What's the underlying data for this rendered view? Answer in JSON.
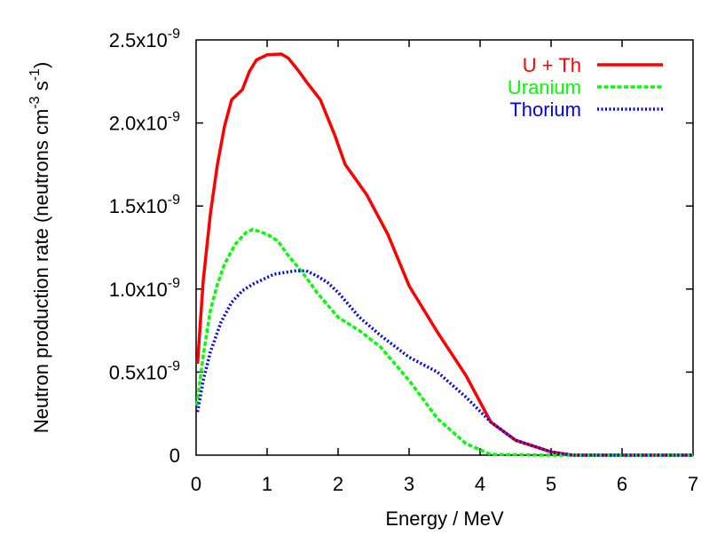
{
  "chart_data": {
    "type": "line",
    "title": "",
    "xlabel": "Energy / MeV",
    "ylabel": "Neutron production rate (neutrons cm^-3 s^-1)",
    "ylabel_parts": {
      "main": "Neutron production rate (neutrons cm",
      "sup1": "-3",
      "mid": " s",
      "sup2": "-1",
      "end": ")"
    },
    "xlim": [
      0,
      7
    ],
    "ylim": [
      0,
      2.5e-09
    ],
    "y_unit_multiplier": 1e-09,
    "x_ticks": [
      0,
      1,
      2,
      3,
      4,
      5,
      6,
      7
    ],
    "x_tick_labels": [
      "0",
      "1",
      "2",
      "3",
      "4",
      "5",
      "6",
      "7"
    ],
    "y_ticks": [
      0,
      0.5,
      1.0,
      1.5,
      2.0,
      2.5
    ],
    "y_tick_labels": [
      {
        "base": "0",
        "exp": ""
      },
      {
        "base": "0.5x10",
        "exp": "-9"
      },
      {
        "base": "1.0x10",
        "exp": "-9"
      },
      {
        "base": "1.5x10",
        "exp": "-9"
      },
      {
        "base": "2.0x10",
        "exp": "-9"
      },
      {
        "base": "2.5x10",
        "exp": "-9"
      }
    ],
    "grid": false,
    "legend_position": "top-right",
    "series": [
      {
        "name": "U + Th",
        "color": "#ff0000",
        "style": "solid",
        "x": [
          0.02,
          0.1,
          0.2,
          0.3,
          0.4,
          0.5,
          0.65,
          0.75,
          0.85,
          1.0,
          1.2,
          1.3,
          1.45,
          1.55,
          1.75,
          1.95,
          2.1,
          2.4,
          2.7,
          3.0,
          3.4,
          3.8,
          4.15,
          4.5,
          5.0,
          5.3,
          6.0,
          7.0
        ],
        "y": [
          0.55,
          1.05,
          1.45,
          1.75,
          1.98,
          2.14,
          2.2,
          2.31,
          2.38,
          2.41,
          2.415,
          2.39,
          2.31,
          2.25,
          2.14,
          1.93,
          1.75,
          1.57,
          1.33,
          1.02,
          0.74,
          0.48,
          0.2,
          0.09,
          0.02,
          0.0,
          0.0,
          0.0
        ]
      },
      {
        "name": "Uranium",
        "color": "#00ff00",
        "style": "dashed",
        "x": [
          0.01,
          0.1,
          0.2,
          0.3,
          0.4,
          0.55,
          0.7,
          0.8,
          1.0,
          1.15,
          1.3,
          1.4,
          1.55,
          1.7,
          2.0,
          2.3,
          2.6,
          3.0,
          3.4,
          3.8,
          4.15,
          5.0,
          6.0,
          7.0
        ],
        "y": [
          0.3,
          0.6,
          0.87,
          1.03,
          1.15,
          1.27,
          1.34,
          1.36,
          1.33,
          1.29,
          1.2,
          1.15,
          1.07,
          0.98,
          0.83,
          0.75,
          0.65,
          0.45,
          0.22,
          0.07,
          0.005,
          0.0,
          0.0,
          0.0
        ]
      },
      {
        "name": "Thorium",
        "color": "#0000ff",
        "style": "dotted",
        "x": [
          0.02,
          0.1,
          0.2,
          0.35,
          0.5,
          0.65,
          0.8,
          1.1,
          1.4,
          1.55,
          1.7,
          1.85,
          2.0,
          2.3,
          2.6,
          3.0,
          3.4,
          3.8,
          4.15,
          4.5,
          5.0,
          5.3,
          6.0,
          7.0
        ],
        "y": [
          0.26,
          0.45,
          0.62,
          0.8,
          0.92,
          0.99,
          1.03,
          1.09,
          1.11,
          1.11,
          1.08,
          1.04,
          0.98,
          0.83,
          0.72,
          0.59,
          0.5,
          0.35,
          0.2,
          0.09,
          0.02,
          0.0,
          0.0,
          0.0
        ]
      }
    ]
  }
}
